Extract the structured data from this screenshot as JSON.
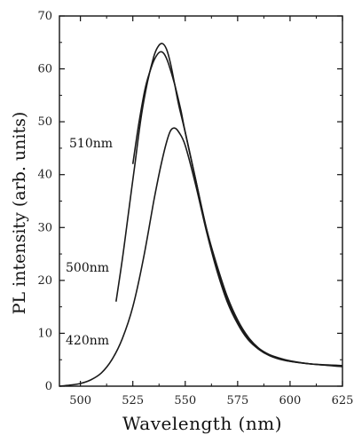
{
  "chart_data": {
    "type": "line",
    "xlabel": "Wavelength (nm)",
    "ylabel": "PL intensity (arb. units)",
    "xlim": [
      490,
      625
    ],
    "ylim": [
      0,
      70
    ],
    "xticks": [
      500,
      525,
      550,
      575,
      600,
      625
    ],
    "yticks": [
      0,
      10,
      20,
      30,
      40,
      50,
      60,
      70
    ],
    "annotations": [
      "510nm",
      "500nm",
      "420nm"
    ],
    "series": [
      {
        "name": "510nm",
        "x": [
          525,
          528,
          531,
          534,
          536,
          538,
          540,
          542,
          545,
          548,
          550,
          555,
          560,
          565,
          570,
          575,
          580,
          585,
          590,
          595,
          600,
          610,
          625
        ],
        "y": [
          42,
          50,
          56.5,
          60.5,
          62.3,
          63.2,
          62.8,
          61,
          57,
          52,
          48,
          39,
          30,
          23,
          17,
          12.5,
          9.3,
          7.2,
          6,
          5.3,
          4.8,
          4.2,
          3.8
        ]
      },
      {
        "name": "500nm",
        "x": [
          517,
          520,
          523,
          526,
          529,
          532,
          535,
          537,
          539,
          541,
          543,
          545,
          547,
          550,
          555,
          560,
          565,
          570,
          575,
          580,
          585,
          590,
          595,
          600,
          610,
          625
        ],
        "y": [
          16,
          24,
          33,
          42,
          51,
          57.5,
          62.3,
          64.2,
          64.8,
          63.8,
          61,
          57,
          53,
          48,
          39,
          30,
          22.5,
          16.5,
          12,
          9,
          7,
          5.9,
          5.2,
          4.7,
          4.2,
          3.7
        ]
      },
      {
        "name": "420nm",
        "x": [
          490,
          495,
          500,
          505,
          510,
          515,
          520,
          525,
          530,
          535,
          538,
          541,
          543,
          545,
          547,
          550,
          555,
          560,
          565,
          570,
          575,
          580,
          585,
          590,
          595,
          600,
          610,
          625
        ],
        "y": [
          0,
          0.2,
          0.5,
          1.2,
          2.5,
          5,
          9,
          15,
          24,
          35,
          41,
          46,
          48.3,
          48.8,
          48,
          45.5,
          38,
          29.5,
          22,
          16,
          11.8,
          8.8,
          7,
          5.8,
          5.1,
          4.7,
          4.2,
          3.9
        ]
      }
    ]
  }
}
